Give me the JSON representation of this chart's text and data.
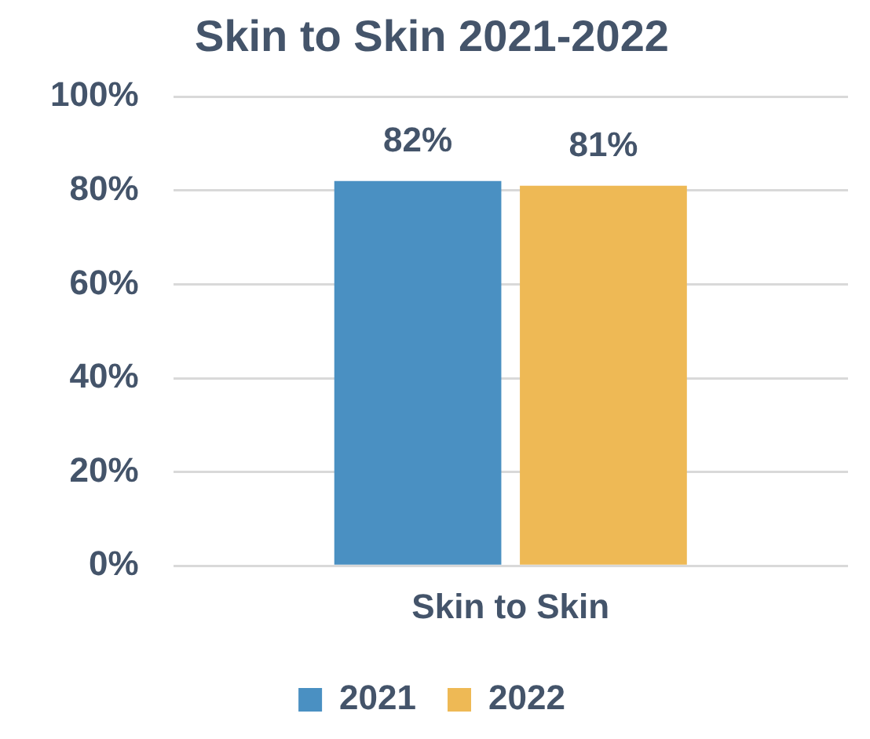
{
  "chart_data": {
    "type": "bar",
    "title": "Skin to Skin 2021-2022",
    "categories": [
      "Skin to Skin"
    ],
    "series": [
      {
        "name": "2021",
        "color": "#4a90c2",
        "values": [
          82
        ],
        "value_labels": [
          "82%"
        ]
      },
      {
        "name": "2022",
        "color": "#eeb955",
        "values": [
          81
        ],
        "value_labels": [
          "81%"
        ]
      }
    ],
    "ylim": [
      0,
      100
    ],
    "yticks": [
      {
        "value": 0,
        "label": "0%"
      },
      {
        "value": 20,
        "label": "20%"
      },
      {
        "value": 40,
        "label": "40%"
      },
      {
        "value": 60,
        "label": "60%"
      },
      {
        "value": 80,
        "label": "80%"
      },
      {
        "value": 100,
        "label": "100%"
      }
    ],
    "grid": "y",
    "legend": "bottom"
  }
}
